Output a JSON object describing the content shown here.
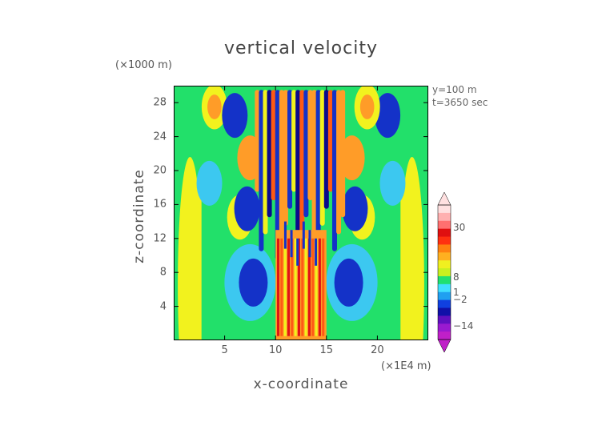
{
  "chart_data": {
    "type": "heatmap",
    "title": "vertical velocity",
    "xlabel": "x-coordinate",
    "ylabel": "z-coordinate",
    "x_unit": "(×1E4 m)",
    "z_unit": "(×1000 m)",
    "annotations": [
      "y=100 m",
      "t=3650 sec"
    ],
    "xlim": [
      0,
      25
    ],
    "ylim": [
      0,
      30
    ],
    "x_ticks": [
      {
        "value": 5,
        "label": "5"
      },
      {
        "value": 10,
        "label": "10"
      },
      {
        "value": 15,
        "label": "15"
      },
      {
        "value": 20,
        "label": "20"
      }
    ],
    "y_ticks": [
      {
        "value": 4,
        "label": "4"
      },
      {
        "value": 8,
        "label": "8"
      },
      {
        "value": 12,
        "label": "12"
      },
      {
        "value": 16,
        "label": "16"
      },
      {
        "value": 20,
        "label": "20"
      },
      {
        "value": 24,
        "label": "24"
      },
      {
        "value": 28,
        "label": "28"
      }
    ],
    "colorbar": {
      "range": [
        -20,
        40
      ],
      "tick_labels": [
        {
          "value": 30,
          "label": "30"
        },
        {
          "value": 8,
          "label": "8"
        },
        {
          "value": 1,
          "label": "1"
        },
        {
          "value": -2,
          "label": "−2"
        },
        {
          "value": -14,
          "label": "−14"
        }
      ],
      "colors": [
        "#c020c8",
        "#9a1ad0",
        "#6010c0",
        "#1010a8",
        "#1040e0",
        "#20a0f0",
        "#40e0ff",
        "#20e070",
        "#c8f020",
        "#f0f020",
        "#ffb020",
        "#ff8010",
        "#ff3010",
        "#e01010",
        "#ff7070",
        "#ffb0b0",
        "#ffe0e0"
      ]
    },
    "field_colors": {
      "background": "#22e06a",
      "weak_positive": "#f2f21e",
      "weak_negative": "#3cc8f0",
      "strong_negative": "#1432c8",
      "deep_negative": "#0a0a8c",
      "positive": "#ff9c28",
      "strong_positive": "#ff5a14",
      "max_positive": "#e01414"
    }
  }
}
